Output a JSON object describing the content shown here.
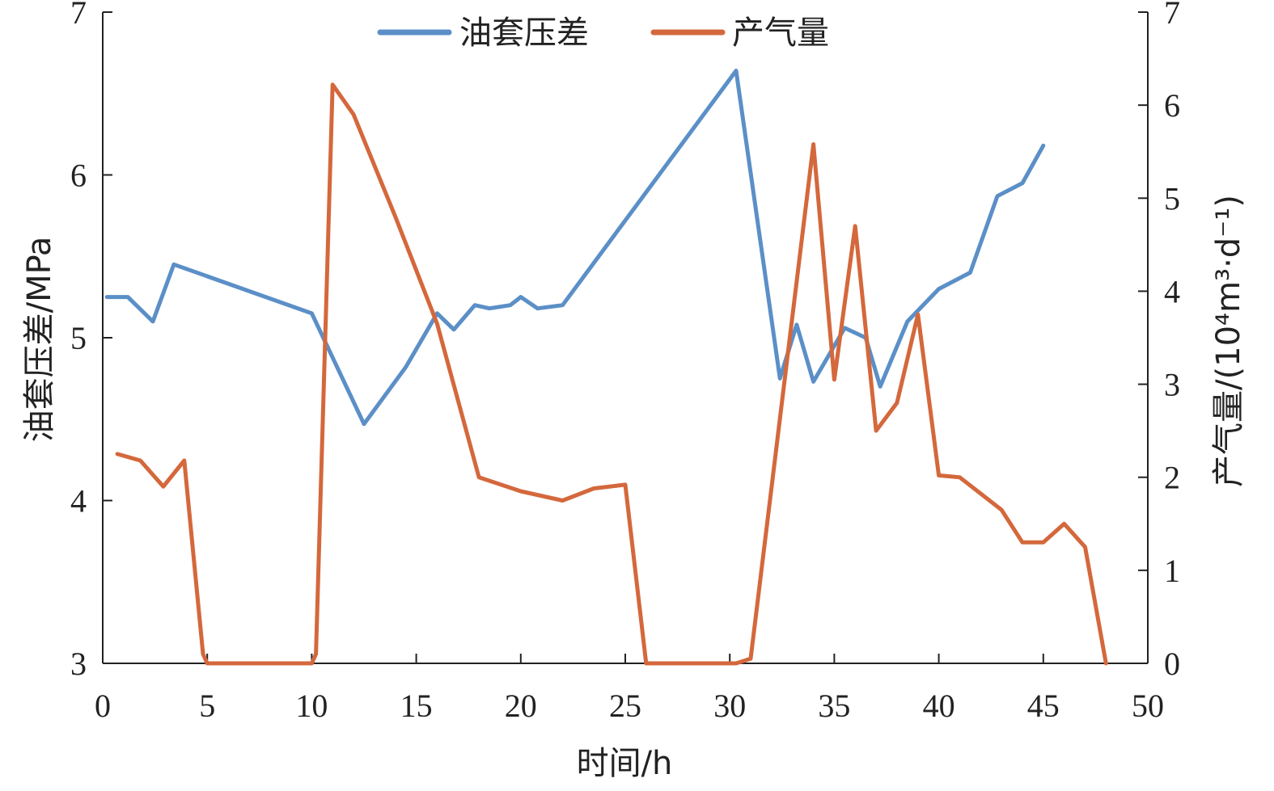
{
  "chart_data": {
    "type": "line",
    "title": "",
    "xlabel": "时间/h",
    "ylabel_left": "油套压差/MPa",
    "ylabel_right": "产气量/(10⁴m³·d⁻¹)",
    "xlim": [
      0,
      50
    ],
    "ylim_left": [
      3,
      7
    ],
    "ylim_right": [
      0,
      7
    ],
    "x_ticks": [
      "0",
      "5",
      "10",
      "15",
      "20",
      "25",
      "30",
      "35",
      "40",
      "45",
      "50"
    ],
    "y_left_ticks": [
      "3",
      "4",
      "5",
      "6",
      "7"
    ],
    "y_right_ticks": [
      "0",
      "1",
      "2",
      "3",
      "4",
      "5",
      "6",
      "7"
    ],
    "grid": false,
    "legend_position": "top-center",
    "series": [
      {
        "name": "油套压差",
        "axis": "left",
        "color": "#5b8fc7",
        "x": [
          0.2,
          1.2,
          2.4,
          3.4,
          10.0,
          12.5,
          14.5,
          16.0,
          16.8,
          17.8,
          18.5,
          19.5,
          20.0,
          20.8,
          22.0,
          30.3,
          32.4,
          33.2,
          34.0,
          35.5,
          36.5,
          37.2,
          38.5,
          40.0,
          41.5,
          42.8,
          44.0,
          45.0
        ],
        "values": [
          5.25,
          5.25,
          5.1,
          5.45,
          5.15,
          4.47,
          4.82,
          5.15,
          5.05,
          5.2,
          5.18,
          5.2,
          5.25,
          5.18,
          5.2,
          6.64,
          4.75,
          5.08,
          4.73,
          5.06,
          5.0,
          4.7,
          5.1,
          5.3,
          5.4,
          5.87,
          5.95,
          6.18
        ]
      },
      {
        "name": "产气量",
        "axis": "right",
        "color": "#d4683c",
        "x": [
          0.7,
          1.8,
          2.9,
          3.9,
          4.8,
          5.0,
          10.0,
          10.2,
          11.0,
          12.0,
          14.0,
          16.0,
          18.0,
          20.0,
          22.0,
          23.5,
          25.0,
          26.0,
          30.3,
          31.0,
          34.0,
          35.0,
          36.0,
          37.0,
          38.0,
          39.0,
          40.0,
          41.0,
          43.0,
          44.0,
          45.0,
          46.0,
          47.0,
          48.0
        ],
        "values": [
          2.25,
          2.18,
          1.9,
          2.18,
          0.1,
          0.0,
          0.0,
          0.1,
          6.22,
          5.9,
          4.8,
          3.65,
          2.0,
          1.85,
          1.75,
          1.88,
          1.92,
          0.0,
          0.0,
          0.05,
          5.58,
          3.05,
          4.7,
          2.5,
          2.8,
          3.75,
          2.02,
          2.0,
          1.65,
          1.3,
          1.3,
          1.5,
          1.25,
          0.0
        ]
      }
    ]
  }
}
